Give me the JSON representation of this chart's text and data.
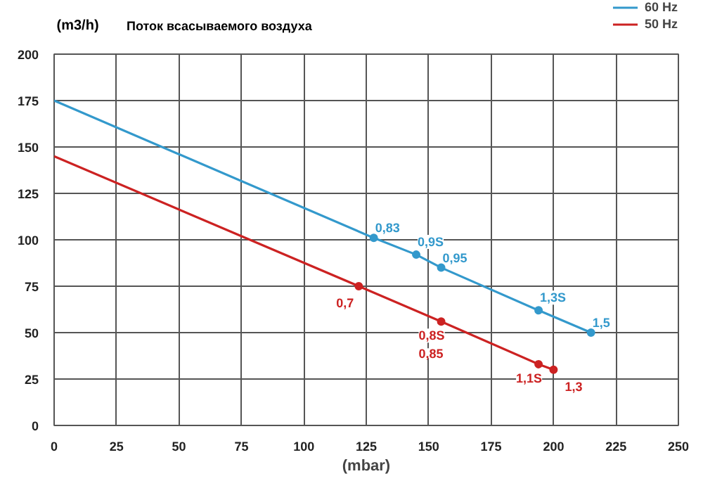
{
  "chart_data": {
    "type": "line",
    "title": "Поток всасываемого воздуха",
    "ylabel": "(m3/h)",
    "xlabel": "(mbar)",
    "xlim": [
      0,
      250
    ],
    "xticks": [
      0,
      25,
      50,
      75,
      100,
      125,
      150,
      175,
      200,
      225,
      250
    ],
    "ylim": [
      0,
      200
    ],
    "yticks": [
      0,
      25,
      50,
      75,
      100,
      125,
      150,
      175,
      200
    ],
    "grid": true,
    "legend": "top right",
    "series": [
      {
        "name": "60 Hz",
        "color": "#3399cc",
        "x": [
          0,
          128,
          145,
          155,
          194,
          215
        ],
        "values": [
          175,
          101,
          92,
          85,
          62,
          50
        ]
      },
      {
        "name": "50 Hz",
        "color": "#cc2222",
        "x": [
          0,
          122,
          155,
          194,
          200
        ],
        "values": [
          145,
          75,
          56,
          33,
          30
        ]
      },
      {
        "color": "#3399cc",
        "type": "scatter",
        "marker": "circle",
        "x": [
          128,
          145,
          155,
          194,
          215
        ],
        "values": [
          101,
          92,
          85,
          62,
          50
        ]
      },
      {
        "color": "#cc2222",
        "type": "scatter",
        "marker": "circle",
        "x": [
          122,
          155,
          194,
          200
        ],
        "values": [
          75,
          56,
          33,
          30
        ]
      }
    ],
    "annotations": [
      {
        "text": "0,83",
        "x": 128,
        "y": 101
      },
      {
        "text": "0,9S",
        "x": 145,
        "y": 92
      },
      {
        "text": "0,95",
        "x": 155,
        "y": 85
      },
      {
        "text": "1,3S",
        "x": 194,
        "y": 62
      },
      {
        "text": "1,5",
        "x": 215,
        "y": 50
      },
      {
        "text": "0,7",
        "x": 122,
        "y": 75
      },
      {
        "text": "0,8S",
        "x": 155,
        "y": 56
      },
      {
        "text": "0,85",
        "x": 155,
        "y": 56
      },
      {
        "text": "1,1S",
        "x": 194,
        "y": 33
      },
      {
        "text": "1,3",
        "x": 200,
        "y": 30
      }
    ]
  }
}
